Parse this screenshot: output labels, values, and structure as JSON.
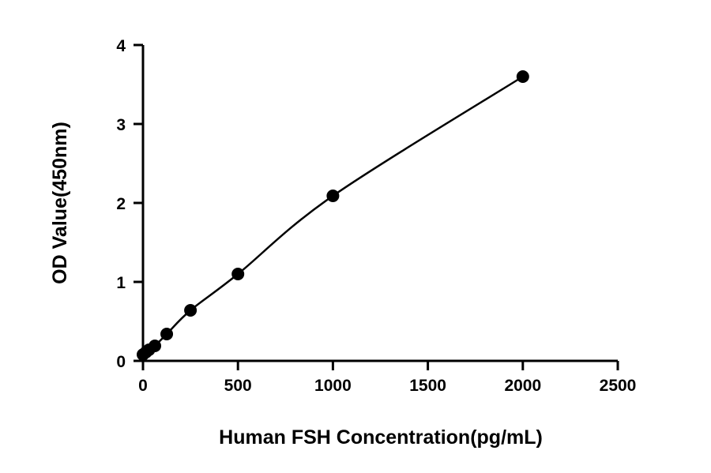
{
  "chart_data": {
    "type": "scatter",
    "title": "",
    "xlabel": "Human FSH Concentration(pg/mL)",
    "ylabel": "OD Value(450nm)",
    "xlim": [
      0,
      2500
    ],
    "ylim": [
      0,
      4
    ],
    "x_ticks": [
      "0",
      "500",
      "1000",
      "1500",
      "2000",
      "2500"
    ],
    "y_ticks": [
      "0",
      "1",
      "2",
      "3",
      "4"
    ],
    "grid": false,
    "legend": "none",
    "fit_curve": true,
    "series": [
      {
        "x": [
          0,
          15.6,
          31.25,
          62.5,
          125,
          250,
          500,
          1000,
          2000
        ],
        "y": [
          0.08,
          0.11,
          0.14,
          0.19,
          0.34,
          0.64,
          1.1,
          2.09,
          3.6
        ]
      }
    ],
    "colors": {
      "marker": "#000000",
      "line": "#000000"
    }
  }
}
